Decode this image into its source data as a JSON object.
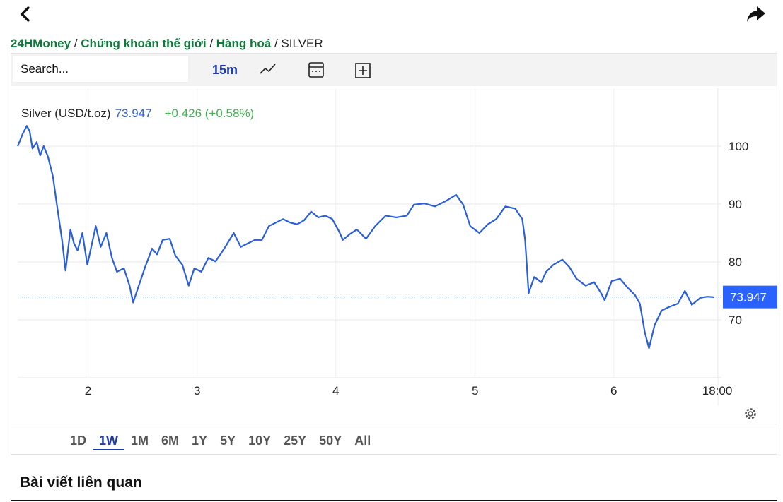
{
  "breadcrumb": [
    "24HMoney",
    "Chứng khoán thế giới",
    "Hàng hoá",
    "SILVER"
  ],
  "toolbar": {
    "search": "Search...",
    "interval": "15m"
  },
  "ranges": [
    "1D",
    "1W",
    "1M",
    "6M",
    "1Y",
    "5Y",
    "10Y",
    "25Y",
    "50Y",
    "All"
  ],
  "active_range": "1W",
  "related_title": "Bài viết liên quan",
  "chart_data": {
    "type": "line",
    "title": "Silver (USD/t.oz)",
    "last_value": 73.947,
    "change_label": "+0.426 (+0.58%)",
    "x": [
      0,
      0.7,
      1.3,
      1.7,
      2.1,
      2.7,
      3.2,
      3.7,
      4.3,
      5.0,
      5.5,
      6.3,
      6.8,
      7.5,
      8.0,
      8.5,
      9.2,
      9.9,
      11.1,
      11.8,
      12.6,
      13.4,
      14.1,
      15.1,
      15.9,
      16.4,
      17.1,
      18.1,
      19.1,
      19.8,
      20.6,
      21.6,
      22.4,
      23.4,
      24.3,
      25.1,
      26.1,
      27.1,
      28.1,
      28.8,
      29.6,
      30.7,
      31.7,
      32.7,
      33.7,
      34.7,
      35.7,
      36.7,
      37.7,
      38.7,
      39.7,
      40.7,
      41.7,
      42.7,
      43.7,
      44.7,
      45.7,
      46.2,
      47.2,
      48.2,
      49.5,
      50.8,
      52.3,
      53.8,
      55.3,
      56.3,
      57.8,
      59.3,
      60.8,
      62.3,
      63.3,
      64.3,
      65.6,
      66.8,
      68.0,
      69.3,
      70.7,
      71.7,
      72.1,
      72.6,
      73.4,
      74.4,
      75.1,
      76.1,
      77.4,
      78.4,
      79.4,
      80.7,
      81.9,
      82.9,
      83.4,
      84.4,
      85.6,
      86.7,
      87.7,
      88.4,
      89.1,
      89.7,
      90.5,
      91.5,
      92.5,
      93.8,
      94.8,
      95.8,
      97.0,
      98.0,
      99.0
    ],
    "series": [
      {
        "name": "Silver",
        "color": "#2b5fd9",
        "values": [
          100.0,
          102.1,
          103.5,
          102.6,
          99.6,
          100.7,
          98.4,
          100.0,
          98.2,
          94.8,
          90.5,
          83.8,
          78.5,
          85.6,
          83.2,
          82.0,
          85.0,
          79.5,
          86.2,
          82.6,
          85.0,
          80.7,
          78.3,
          78.9,
          75.9,
          73.0,
          75.5,
          79.1,
          82.3,
          81.3,
          83.8,
          84.0,
          81.1,
          79.5,
          75.9,
          78.9,
          78.3,
          80.7,
          80.1,
          81.3,
          82.8,
          85.0,
          82.6,
          83.2,
          83.8,
          83.8,
          86.2,
          86.8,
          87.4,
          86.8,
          86.5,
          87.2,
          88.7,
          87.7,
          88.0,
          87.4,
          85.2,
          83.8,
          84.8,
          85.6,
          84.0,
          86.2,
          88.0,
          87.7,
          88.0,
          89.9,
          90.1,
          89.6,
          90.5,
          91.6,
          89.9,
          86.2,
          85.0,
          86.5,
          87.4,
          89.6,
          89.2,
          87.4,
          83.8,
          74.6,
          77.4,
          76.5,
          78.3,
          79.5,
          80.4,
          79.1,
          77.1,
          75.9,
          76.5,
          74.6,
          73.4,
          76.7,
          77.1,
          75.5,
          74.3,
          72.8,
          67.9,
          65.1,
          69.1,
          71.6,
          72.2,
          72.8,
          75.0,
          72.6,
          73.8,
          74.0,
          73.9
        ]
      }
    ],
    "xlim": [
      0,
      100
    ],
    "xticks": [
      {
        "value": 10,
        "label": "2"
      },
      {
        "value": 25.5,
        "label": "3"
      },
      {
        "value": 45.2,
        "label": "4"
      },
      {
        "value": 65,
        "label": "5"
      },
      {
        "value": 84.7,
        "label": "6"
      },
      {
        "value": 99.4,
        "label": "18:00"
      }
    ],
    "ylim": [
      60,
      110
    ],
    "yticks": [
      70,
      80,
      90,
      100
    ],
    "grid": true,
    "axis_side": "right"
  }
}
